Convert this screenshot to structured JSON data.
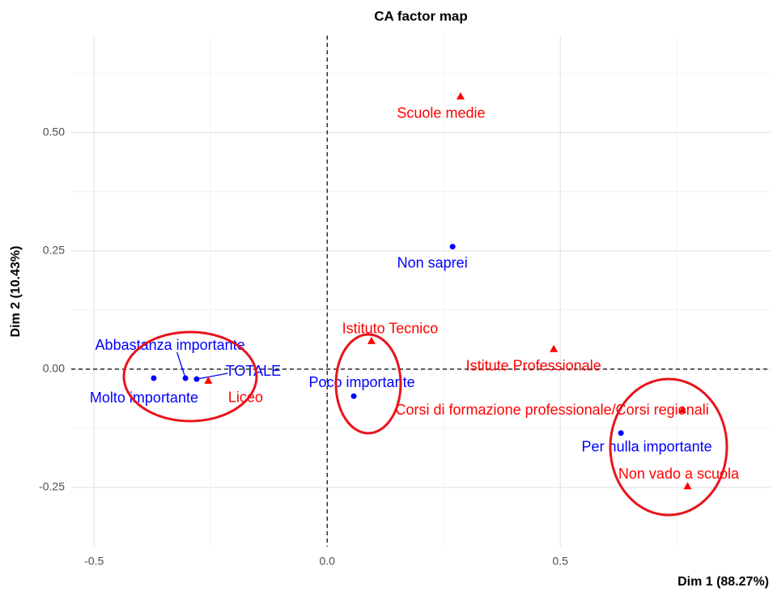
{
  "chart_data": {
    "type": "scatter",
    "title": "CA factor map",
    "xlabel": "Dim 1 (88.27%)",
    "ylabel": "Dim 2 (10.43%)",
    "xlim": [
      -0.549,
      0.951
    ],
    "ylim": [
      -0.375,
      0.705
    ],
    "xticks": [
      -0.5,
      {
        "value": 0,
        "label": "0.0"
      },
      0.5
    ],
    "yticks": [
      -0.25,
      {
        "value": 0,
        "label": "0.00"
      },
      0.25,
      {
        "value": 0.5,
        "label": "0.50"
      }
    ],
    "xminorticks": [
      -0.25,
      0.25,
      0.75
    ],
    "yminorticks": [
      -0.125,
      0.125,
      0.375,
      0.625
    ],
    "grid": true,
    "series": [
      {
        "color": "#0000ff",
        "marker": "circle",
        "labels": [
          "Molto importante",
          "Abbastanza importante",
          "TOTALE",
          "Poco importante",
          "Non saprei",
          "Per nulla importante"
        ],
        "x": [
          -0.372,
          -0.304,
          -0.28,
          0.057,
          0.269,
          0.63
        ],
        "values": [
          -0.019,
          -0.019,
          -0.021,
          -0.057,
          0.259,
          -0.135
        ]
      },
      {
        "color": "#ff0000",
        "marker": "triangle",
        "labels": [
          "Liceo",
          "Istituto Tecnico",
          "Scuole medie",
          "Istitute Professionale",
          "Corsi di formazione professionale/Corsi regionali",
          "Non vado a scuola"
        ],
        "x": [
          -0.255,
          0.095,
          0.286,
          0.486,
          0.762,
          0.773
        ],
        "values": [
          -0.024,
          0.06,
          0.577,
          0.043,
          -0.086,
          -0.247
        ]
      }
    ]
  }
}
